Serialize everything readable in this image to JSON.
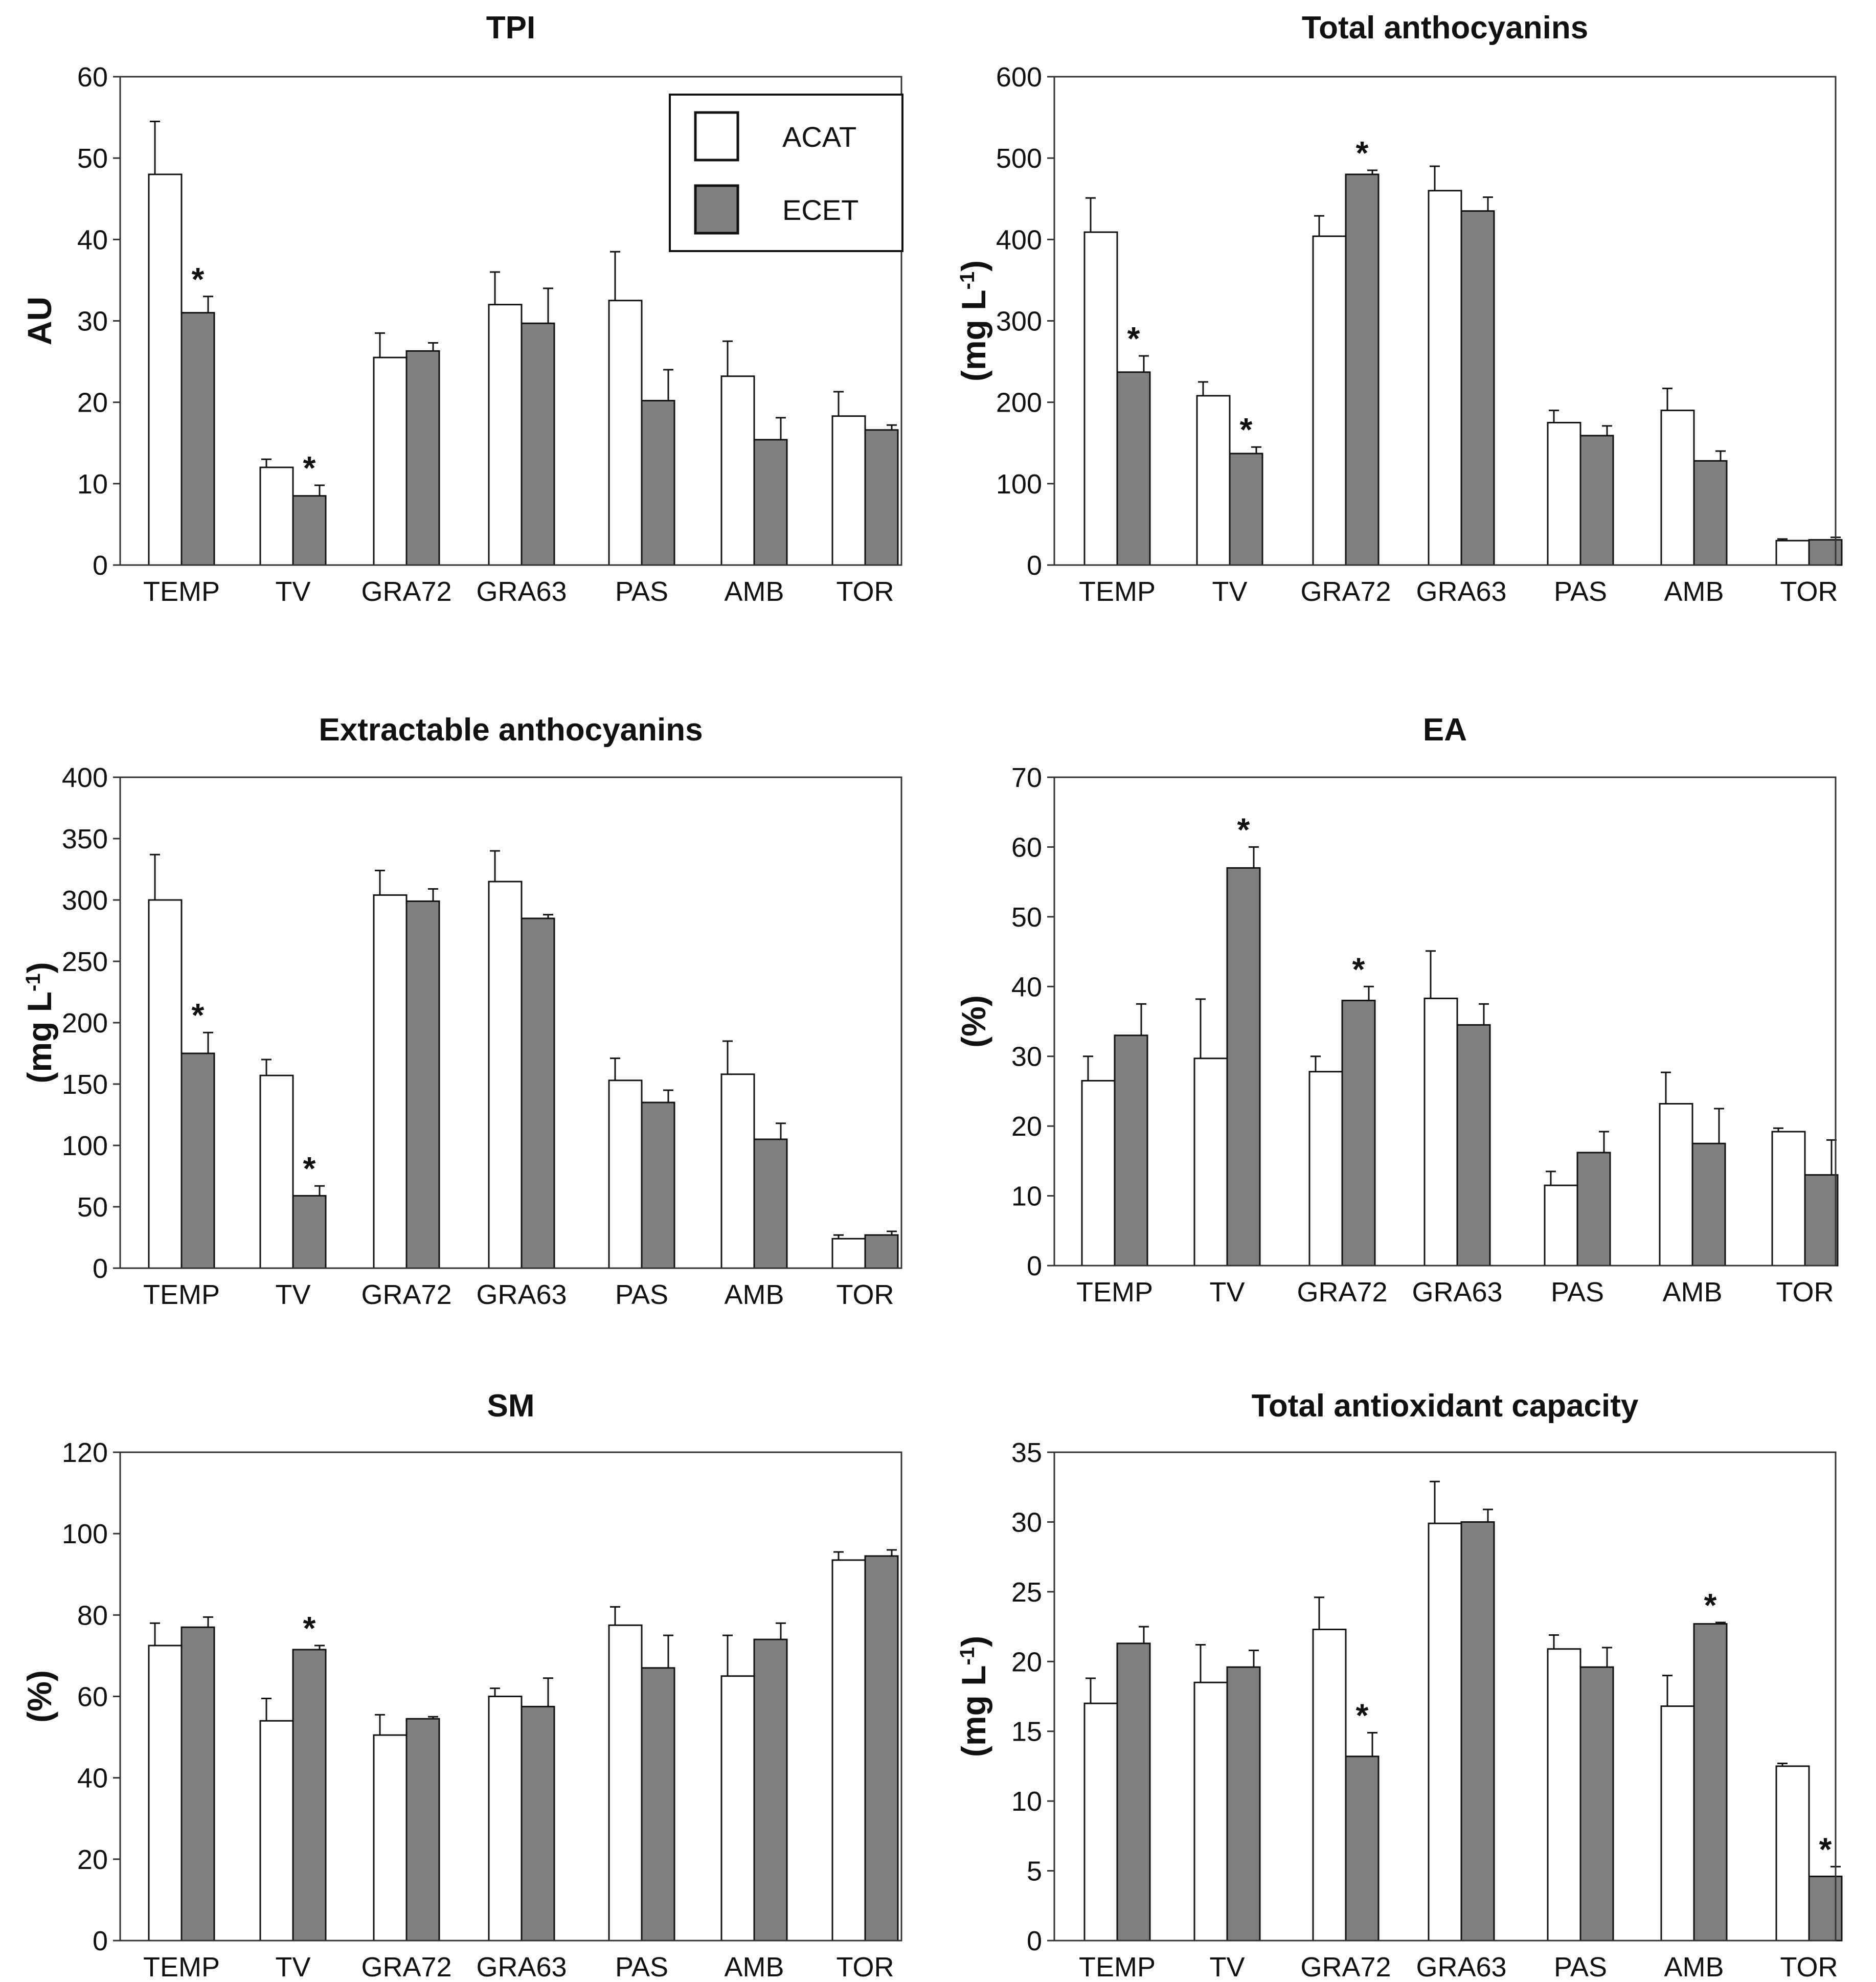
{
  "legend": {
    "items": [
      {
        "name": "ACAT",
        "color": "#ffffff"
      },
      {
        "name": "ECET",
        "color": "#808080"
      }
    ]
  },
  "chart_data": [
    {
      "type": "bar",
      "title": "TPI",
      "ylabel": "AU",
      "ylim": [
        0,
        60
      ],
      "yticks": [
        0,
        10,
        20,
        30,
        40,
        50,
        60
      ],
      "categories": [
        "TEMP",
        "TV",
        "GRA72",
        "GRA63",
        "PAS",
        "AMB",
        "TOR"
      ],
      "series": [
        {
          "name": "ACAT",
          "color": "#ffffff",
          "values": [
            48,
            12,
            25.5,
            32,
            32.5,
            23.2,
            18.3
          ],
          "errors": [
            6.5,
            1,
            3,
            4,
            6,
            4.3,
            3
          ]
        },
        {
          "name": "ECET",
          "color": "#808080",
          "values": [
            31,
            8.5,
            26.3,
            29.7,
            20.2,
            15.4,
            16.6
          ],
          "errors": [
            2,
            1.3,
            1,
            4.3,
            3.8,
            2.7,
            0.6
          ]
        }
      ],
      "significance": [
        {
          "category": "TEMP",
          "series": "ECET",
          "mark": "*"
        },
        {
          "category": "TV",
          "series": "ECET",
          "mark": "*"
        }
      ],
      "legend": "top-right"
    },
    {
      "type": "bar",
      "title": "Total anthocyanins",
      "ylabel": "(mg L",
      "ylabel_sup": "-1",
      "ylabel_tail": ")",
      "ylim": [
        0,
        600
      ],
      "yticks": [
        0,
        100,
        200,
        300,
        400,
        500,
        600
      ],
      "categories": [
        "TEMP",
        "TV",
        "GRA72",
        "GRA63",
        "PAS",
        "AMB",
        "TOR"
      ],
      "series": [
        {
          "name": "ACAT",
          "color": "#ffffff",
          "values": [
            409,
            208,
            404,
            460,
            175,
            190,
            30
          ],
          "errors": [
            42,
            17,
            25,
            30,
            15,
            27,
            2
          ]
        },
        {
          "name": "ECET",
          "color": "#808080",
          "values": [
            237,
            137,
            480,
            435,
            159,
            128,
            31
          ],
          "errors": [
            20,
            8,
            5,
            17,
            12,
            12,
            3
          ]
        }
      ],
      "significance": [
        {
          "category": "TEMP",
          "series": "ECET",
          "mark": "*"
        },
        {
          "category": "TV",
          "series": "ECET",
          "mark": "*"
        },
        {
          "category": "GRA72",
          "series": "ECET",
          "mark": "*"
        }
      ]
    },
    {
      "type": "bar",
      "title": "Extractable anthocyanins",
      "ylabel": "(mg L",
      "ylabel_sup": "-1",
      "ylabel_tail": ")",
      "ylim": [
        0,
        400
      ],
      "yticks": [
        0,
        50,
        100,
        150,
        200,
        250,
        300,
        350,
        400
      ],
      "categories": [
        "TEMP",
        "TV",
        "GRA72",
        "GRA63",
        "PAS",
        "AMB",
        "TOR"
      ],
      "series": [
        {
          "name": "ACAT",
          "color": "#ffffff",
          "values": [
            300,
            157,
            304,
            315,
            153,
            158,
            24
          ],
          "errors": [
            37,
            13,
            20,
            25,
            18,
            27,
            3
          ]
        },
        {
          "name": "ECET",
          "color": "#808080",
          "values": [
            175,
            59,
            299,
            285,
            135,
            105,
            27
          ],
          "errors": [
            17,
            8,
            10,
            3,
            10,
            13,
            3
          ]
        }
      ],
      "significance": [
        {
          "category": "TEMP",
          "series": "ECET",
          "mark": "*"
        },
        {
          "category": "TV",
          "series": "ECET",
          "mark": "*"
        }
      ]
    },
    {
      "type": "bar",
      "title": "EA",
      "ylabel": "(%)",
      "ylim": [
        0,
        70
      ],
      "yticks": [
        0,
        10,
        20,
        30,
        40,
        50,
        60,
        70
      ],
      "categories": [
        "TEMP",
        "TV",
        "GRA72",
        "GRA63",
        "PAS",
        "AMB",
        "TOR"
      ],
      "series": [
        {
          "name": "ACAT",
          "color": "#ffffff",
          "values": [
            26.5,
            29.7,
            27.8,
            38.3,
            11.5,
            23.2,
            19.2
          ],
          "errors": [
            3.5,
            8.5,
            2.2,
            6.8,
            2,
            4.5,
            0.5
          ]
        },
        {
          "name": "ECET",
          "color": "#808080",
          "values": [
            33,
            57,
            38,
            34.5,
            16.2,
            17.5,
            13
          ],
          "errors": [
            4.5,
            3,
            2,
            3,
            3,
            5,
            5
          ]
        }
      ],
      "significance": [
        {
          "category": "TV",
          "series": "ECET",
          "mark": "*"
        },
        {
          "category": "GRA72",
          "series": "ECET",
          "mark": "*"
        }
      ]
    },
    {
      "type": "bar",
      "title": "SM",
      "ylabel": "(%)",
      "ylim": [
        0,
        120
      ],
      "yticks": [
        0,
        20,
        40,
        60,
        80,
        100,
        120
      ],
      "categories": [
        "TEMP",
        "TV",
        "GRA72",
        "GRA63",
        "PAS",
        "AMB",
        "TOR"
      ],
      "series": [
        {
          "name": "ACAT",
          "color": "#ffffff",
          "values": [
            72.5,
            54,
            50.5,
            60,
            77.5,
            65,
            93.5
          ],
          "errors": [
            5.5,
            5.5,
            5,
            2,
            4.5,
            10,
            2
          ]
        },
        {
          "name": "ECET",
          "color": "#808080",
          "values": [
            77,
            71.5,
            54.5,
            57.5,
            67,
            74,
            94.5
          ],
          "errors": [
            2.5,
            1,
            0.5,
            7,
            8,
            4,
            1.5
          ]
        }
      ],
      "significance": [
        {
          "category": "TV",
          "series": "ECET",
          "mark": "*"
        }
      ]
    },
    {
      "type": "bar",
      "title": "Total antioxidant capacity",
      "ylabel": "(mg L",
      "ylabel_sup": "-1",
      "ylabel_tail": ")",
      "ylim": [
        0,
        35
      ],
      "yticks": [
        0,
        5,
        10,
        15,
        20,
        25,
        30,
        35
      ],
      "categories": [
        "TEMP",
        "TV",
        "GRA72",
        "GRA63",
        "PAS",
        "AMB",
        "TOR"
      ],
      "series": [
        {
          "name": "ACAT",
          "color": "#ffffff",
          "values": [
            17,
            18.5,
            22.3,
            29.9,
            20.9,
            16.8,
            12.5
          ],
          "errors": [
            1.8,
            2.7,
            2.3,
            3,
            1,
            2.2,
            0.2
          ]
        },
        {
          "name": "ECET",
          "color": "#808080",
          "values": [
            21.3,
            19.6,
            13.2,
            30,
            19.6,
            22.7,
            4.6
          ],
          "errors": [
            1.2,
            1.2,
            1.7,
            0.9,
            1.4,
            0.1,
            0.7
          ]
        }
      ],
      "significance": [
        {
          "category": "GRA72",
          "series": "ECET",
          "mark": "*"
        },
        {
          "category": "AMB",
          "series": "ECET",
          "mark": "*"
        },
        {
          "category": "TOR",
          "series": "ECET",
          "mark": "*"
        }
      ]
    }
  ]
}
